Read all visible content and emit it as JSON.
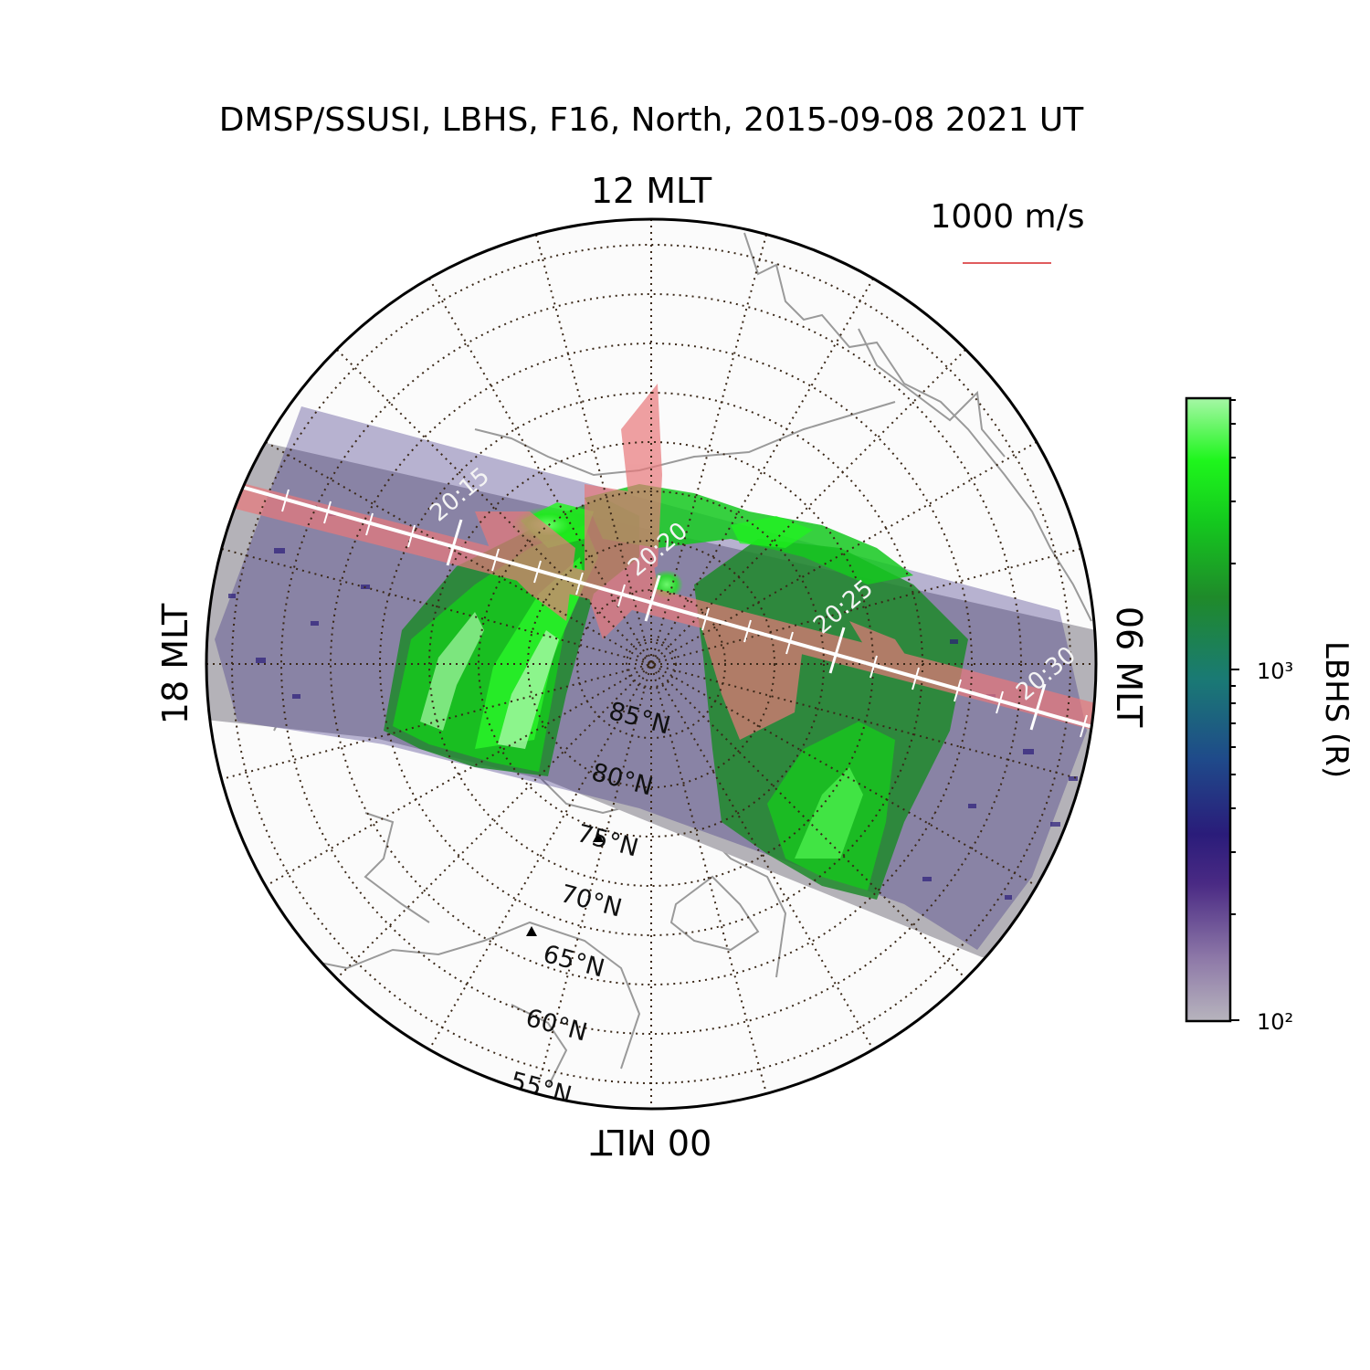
{
  "title": "DMSP/SSUSI, LBHS, F16, North, 2015-09-08 2021 UT",
  "mlt_labels": {
    "top": "12 MLT",
    "right": "06 MLT",
    "bottom": "00 MLT",
    "left": "18 MLT"
  },
  "latitude_labels": [
    "85°N",
    "80°N",
    "75°N",
    "70°N",
    "65°N",
    "60°N",
    "55°N"
  ],
  "ut_ticks": [
    "20:15",
    "20:20",
    "20:25",
    "20:30"
  ],
  "velocity_scale": {
    "label": "1000 m/s",
    "color": "#d62728"
  },
  "colorbar": {
    "label": "LBHS (R)",
    "scale": "log",
    "range": [
      100,
      5000
    ],
    "ticks": [
      {
        "value": 100,
        "label": "10²"
      },
      {
        "value": 1000,
        "label": "10³"
      }
    ],
    "colors": [
      "#b7b4bd",
      "#8e79a8",
      "#4a2a84",
      "#2a1c7a",
      "#1f4a8a",
      "#1a7a74",
      "#1f8a2a",
      "#14c81e",
      "#1ef61c",
      "#a6f7a6"
    ]
  },
  "colors": {
    "land": "#9a9a9a",
    "grid": "#3a2818",
    "ocean": "#fbfbfb",
    "track": "#ffffff",
    "flow": "#e8787a"
  },
  "icons": [
    "station-marker-icon"
  ]
}
